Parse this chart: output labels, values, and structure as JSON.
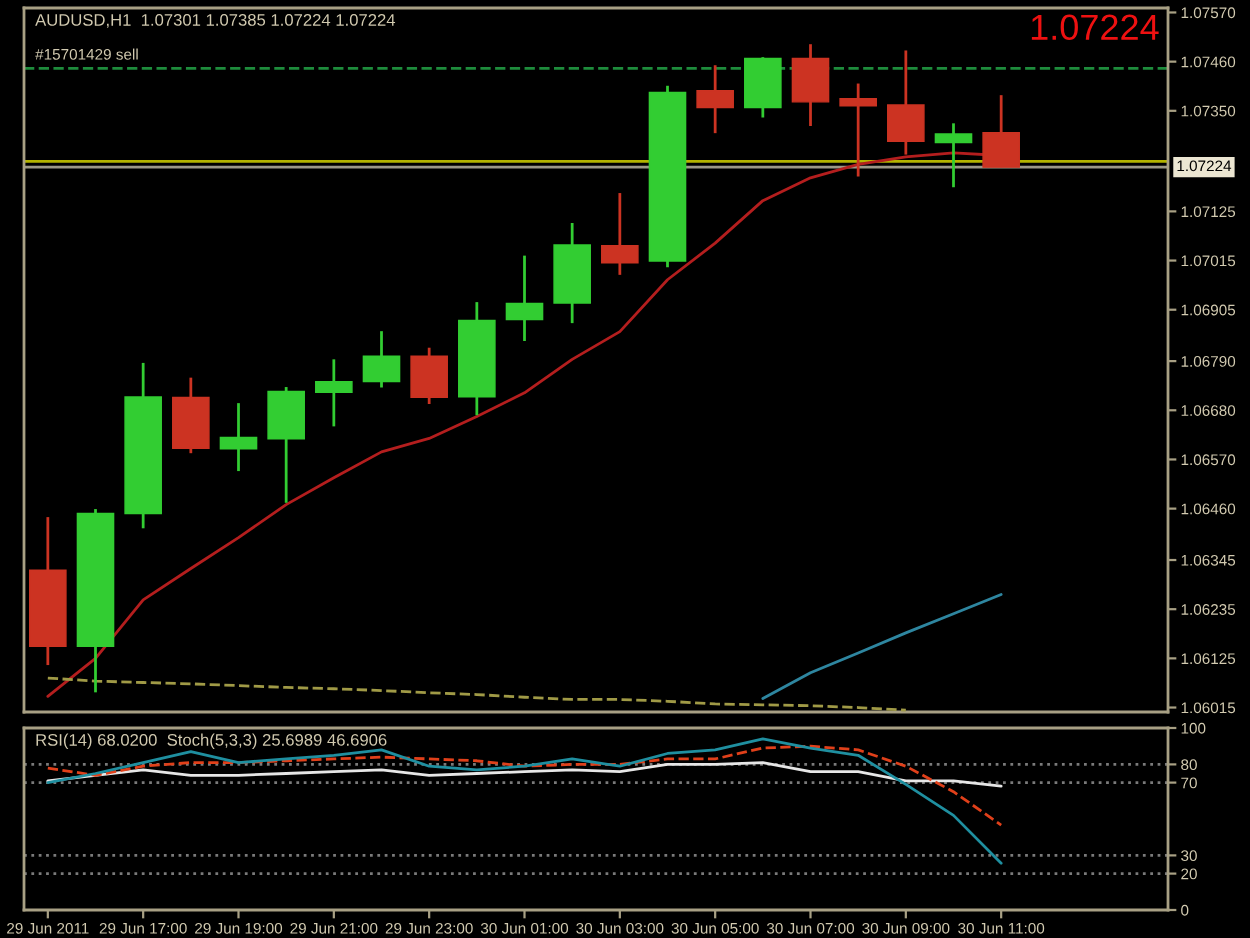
{
  "chart_data": [
    {
      "type": "candlestick",
      "title": "AUDUSD,H1  1.07301 1.07385 1.07224 1.07224",
      "x": [
        "2011-06-29T15:00",
        "2011-06-29T16:00",
        "2011-06-29T17:00",
        "2011-06-29T18:00",
        "2011-06-29T19:00",
        "2011-06-29T20:00",
        "2011-06-29T21:00",
        "2011-06-29T22:00",
        "2011-06-29T23:00",
        "2011-06-30T00:00",
        "2011-06-30T01:00",
        "2011-06-30T02:00",
        "2011-06-30T03:00",
        "2011-06-30T04:00",
        "2011-06-30T05:00",
        "2011-06-30T06:00",
        "2011-06-30T07:00",
        "2011-06-30T08:00",
        "2011-06-30T09:00",
        "2011-06-30T10:00",
        "2011-06-30T11:00"
      ],
      "xlim": [
        "2011-06-29T14:30",
        "2011-06-30T14:30"
      ],
      "ylim": [
        1.06005,
        1.0758
      ],
      "yticks": [
        {
          "value": 1.0757,
          "label": "1.07570"
        },
        {
          "value": 1.0746,
          "label": "1.07460"
        },
        {
          "value": 1.0735,
          "label": "1.07350"
        },
        1.07125,
        1.07015,
        1.06905,
        {
          "value": 1.0679,
          "label": "1.06790"
        },
        {
          "value": 1.0668,
          "label": "1.06680"
        },
        {
          "value": 1.0657,
          "label": "1.06570"
        },
        {
          "value": 1.0646,
          "label": "1.06460"
        },
        1.06345,
        1.06235,
        1.06125,
        1.06015
      ],
      "tick_labels": "y",
      "series": [
        {
          "type": "candlestick",
          "ohlc": [
            [
              1.06322,
              1.06441,
              1.0611,
              1.06152
            ],
            [
              1.06152,
              1.06459,
              1.06049,
              1.06449
            ],
            [
              1.06449,
              1.06786,
              1.06416,
              1.0671
            ],
            [
              1.06709,
              1.06753,
              1.06584,
              1.06595
            ],
            [
              1.06594,
              1.06696,
              1.06544,
              1.06619
            ],
            [
              1.06616,
              1.06732,
              1.06473,
              1.06722
            ],
            [
              1.0672,
              1.06794,
              1.06644,
              1.06744
            ],
            [
              1.06744,
              1.06857,
              1.06731,
              1.06801
            ],
            [
              1.06801,
              1.0682,
              1.06694,
              1.06709
            ],
            [
              1.0671,
              1.06922,
              1.06669,
              1.06881
            ],
            [
              1.06883,
              1.07026,
              1.06835,
              1.06919
            ],
            [
              1.0692,
              1.07099,
              1.06875,
              1.0705
            ],
            [
              1.07048,
              1.07166,
              1.06983,
              1.0701
            ],
            [
              1.07014,
              1.07406,
              1.07,
              1.07391
            ],
            [
              1.07395,
              1.07452,
              1.073,
              1.07357
            ],
            [
              1.07357,
              1.0747,
              1.07335,
              1.07467
            ],
            [
              1.07467,
              1.07499,
              1.07316,
              1.0737
            ],
            [
              1.07377,
              1.07411,
              1.07203,
              1.07361
            ],
            [
              1.07363,
              1.07485,
              1.07252,
              1.07282
            ],
            [
              1.07279,
              1.07322,
              1.07179,
              1.07298
            ],
            [
              1.07301,
              1.07385,
              1.07224,
              1.07224
            ]
          ],
          "colors": [
            "#cc3322",
            "#32cd32",
            "#32cd32",
            "#cc3322",
            "#32cd32",
            "#32cd32",
            "#32cd32",
            "#32cd32",
            "#cc3322",
            "#32cd32",
            "#32cd32",
            "#32cd32",
            "#cc3322",
            "#32cd32",
            "#cc3322",
            "#32cd32",
            "#cc3322",
            "#cc3322",
            "#cc3322",
            "#32cd32",
            "#cc3322"
          ]
        },
        {
          "type": "line",
          "color": "#b41e1e",
          "values": [
            1.0604,
            1.06125,
            1.06256,
            1.06326,
            1.06395,
            1.06469,
            1.06529,
            1.06587,
            1.06617,
            1.06666,
            1.06719,
            1.06794,
            1.06856,
            1.06972,
            1.07054,
            1.07149,
            1.072,
            1.0723,
            1.07247,
            1.07256,
            1.0725
          ]
        },
        {
          "type": "line",
          "color": "#a09a46",
          "line_style": "dashed",
          "values": [
            1.06081,
            1.06074,
            1.06071,
            1.06068,
            1.06064,
            1.0606,
            1.06057,
            1.06053,
            1.06048,
            1.06044,
            1.06038,
            1.06033,
            1.06033,
            1.06029,
            1.06023,
            1.06021,
            1.06019,
            1.06015,
            1.06009,
            null,
            null
          ]
        },
        {
          "type": "line",
          "color": "#2e86a0",
          "values": [
            null,
            null,
            null,
            null,
            null,
            null,
            null,
            null,
            null,
            null,
            null,
            null,
            null,
            null,
            null,
            1.06035,
            1.06093,
            1.06137,
            1.06182,
            1.06225,
            1.06268
          ]
        }
      ],
      "ref_lines": [
        {
          "axis": "y",
          "value": 1.07445,
          "label": "#15701429 sell",
          "color": "#1e8c3c",
          "line_style": "dashed"
        },
        {
          "axis": "y",
          "value": 1.07237,
          "color": "#b4b400"
        },
        {
          "axis": "y",
          "value": 1.07224,
          "label": "1.07224",
          "color": "#9c9888"
        }
      ],
      "annotations": [
        "1.07224"
      ]
    },
    {
      "type": "line",
      "title": "RSI(14) 68.0200  Stoch(5,3,3) 25.6989 46.6906",
      "x": [
        "2011-06-29T15:00",
        "2011-06-29T16:00",
        "2011-06-29T17:00",
        "2011-06-29T18:00",
        "2011-06-29T19:00",
        "2011-06-29T20:00",
        "2011-06-29T21:00",
        "2011-06-29T22:00",
        "2011-06-29T23:00",
        "2011-06-30T00:00",
        "2011-06-30T01:00",
        "2011-06-30T02:00",
        "2011-06-30T03:00",
        "2011-06-30T04:00",
        "2011-06-30T05:00",
        "2011-06-30T06:00",
        "2011-06-30T07:00",
        "2011-06-30T08:00",
        "2011-06-30T09:00",
        "2011-06-30T10:00",
        "2011-06-30T11:00"
      ],
      "xlim": [
        "2011-06-29T14:30",
        "2011-06-30T14:30"
      ],
      "xticks": [
        {
          "value": "2011-06-29T15:00",
          "label": "29 Jun 2011"
        },
        {
          "value": "2011-06-29T17:00",
          "label": "29 Jun 17:00"
        },
        {
          "value": "2011-06-29T19:00",
          "label": "29 Jun 19:00"
        },
        {
          "value": "2011-06-29T21:00",
          "label": "29 Jun 21:00"
        },
        {
          "value": "2011-06-29T23:00",
          "label": "29 Jun 23:00"
        },
        {
          "value": "2011-06-30T01:00",
          "label": "30 Jun 01:00"
        },
        {
          "value": "2011-06-30T03:00",
          "label": "30 Jun 03:00"
        },
        {
          "value": "2011-06-30T05:00",
          "label": "30 Jun 05:00"
        },
        {
          "value": "2011-06-30T07:00",
          "label": "30 Jun 07:00"
        },
        {
          "value": "2011-06-30T09:00",
          "label": "30 Jun 09:00"
        },
        {
          "value": "2011-06-30T11:00",
          "label": "30 Jun 11:00"
        }
      ],
      "ylim": [
        0,
        100
      ],
      "yticks": [
        0,
        20,
        30,
        70,
        80,
        100
      ],
      "ref_lines": [
        {
          "axis": "y",
          "value": 80,
          "color": "#7a7a7a",
          "line_style": "dotted"
        },
        {
          "axis": "y",
          "value": 70,
          "color": "#7a7a7a",
          "line_style": "dotted"
        },
        {
          "axis": "y",
          "value": 30,
          "color": "#7a7a7a",
          "line_style": "dotted"
        },
        {
          "axis": "y",
          "value": 20,
          "color": "#7a7a7a",
          "line_style": "dotted"
        }
      ],
      "series": [
        {
          "color": "#e6e6e6",
          "values": [
            71,
            74,
            77,
            74,
            74,
            75,
            76,
            77,
            74,
            75,
            76,
            77,
            76,
            80,
            80,
            81,
            76,
            76,
            71,
            71,
            68.02
          ]
        },
        {
          "color": "#e0401a",
          "line_style": "dashed",
          "values": [
            78,
            74,
            79,
            81,
            81,
            82,
            83,
            84,
            83,
            82,
            79,
            80,
            80,
            83,
            83,
            89,
            90,
            88,
            79,
            65,
            46.6906
          ]
        },
        {
          "color": "#1f8fa0",
          "values": [
            70,
            75,
            81,
            87,
            81,
            83,
            85,
            88,
            79,
            77,
            79,
            83,
            79,
            86,
            88,
            94,
            89,
            85,
            69,
            52,
            25.6989
          ]
        }
      ]
    }
  ]
}
